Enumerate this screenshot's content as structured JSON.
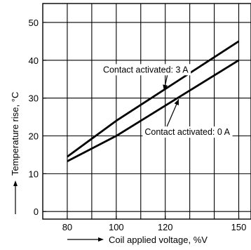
{
  "chart_data": {
    "type": "line",
    "xlabel": "Coil applied voltage, %V",
    "ylabel": "Temperature rise, °C",
    "xlim": [
      70,
      155
    ],
    "ylim": [
      -2,
      55
    ],
    "xticks": [
      80,
      100,
      120,
      150
    ],
    "yticks": [
      0,
      10,
      20,
      30,
      40,
      50
    ],
    "grid": true,
    "series": [
      {
        "name": "Contact activated: 3 A",
        "x": [
          80,
          100,
          150
        ],
        "y": [
          14.5,
          24,
          45
        ]
      },
      {
        "name": "Contact activated: 0 A",
        "x": [
          80,
          100,
          150
        ],
        "y": [
          13.3,
          20,
          40
        ]
      }
    ],
    "annotations": [
      {
        "text": "Contact activated: 3 A",
        "x": 112,
        "y": 37.5
      },
      {
        "text": "Contact activated: 0 A",
        "x": 129,
        "y": 21
      }
    ]
  }
}
